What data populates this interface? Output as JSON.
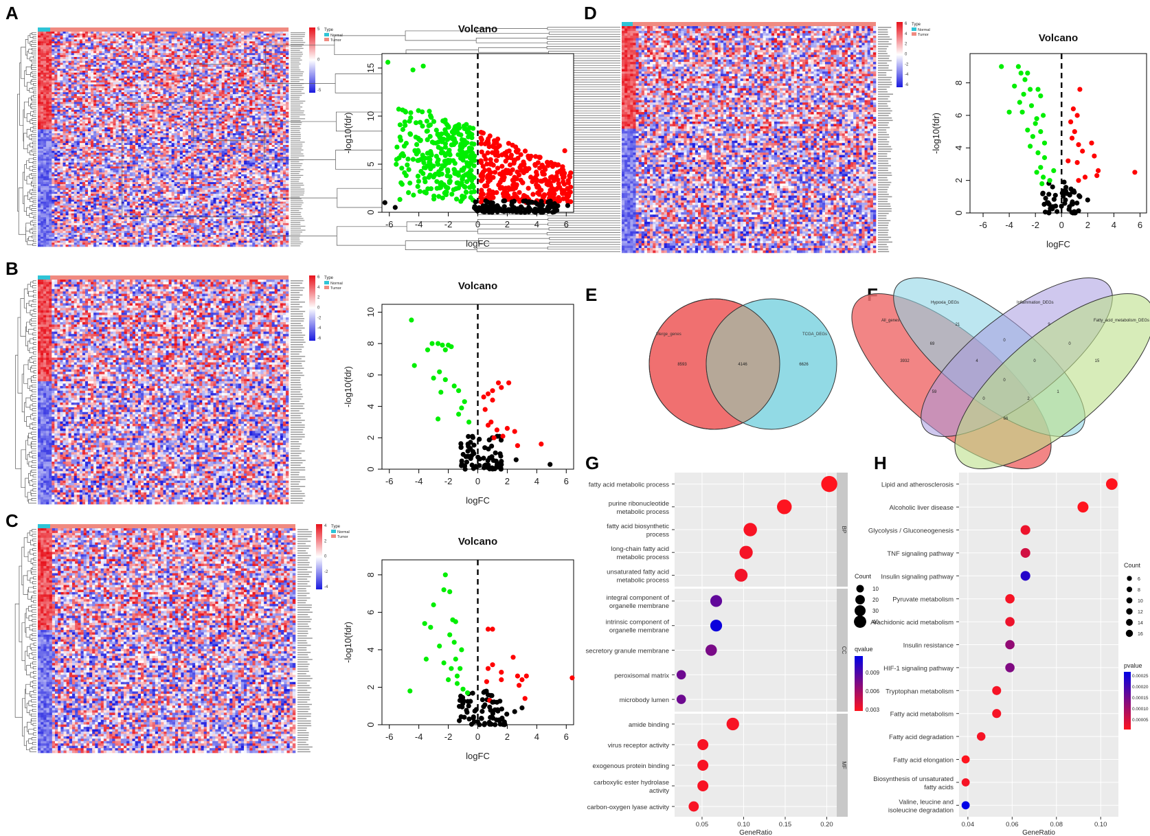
{
  "panel_labels": [
    "A",
    "B",
    "C",
    "D",
    "E",
    "F",
    "G",
    "H"
  ],
  "heatmap_legend": {
    "title": "Type",
    "normal": "Normal",
    "tumor": "Tumor",
    "normal_color": "#2ec4d6",
    "tumor_color": "#f08a80"
  },
  "colors": {
    "up": "#ff0000",
    "down": "#00ee00",
    "ns": "#000000",
    "heat_high": "#e8101a",
    "heat_low": "#1a1adf"
  },
  "heatmaps": [
    {
      "panel": "A",
      "scale_ticks": [
        "5",
        "0",
        "-5"
      ]
    },
    {
      "panel": "B",
      "scale_ticks": [
        "6",
        "4",
        "2",
        "0",
        "-2",
        "-4",
        "-6"
      ]
    },
    {
      "panel": "C",
      "scale_ticks": [
        "4",
        "2",
        "0",
        "-2",
        "-4"
      ]
    },
    {
      "panel": "D",
      "scale_ticks": [
        "6",
        "4",
        "2",
        "0",
        "-2",
        "-4",
        "-6"
      ]
    }
  ],
  "chart_data": [
    {
      "panel": "A",
      "type": "scatter",
      "title": "Volcano",
      "xlabel": "logFC",
      "ylabel": "-log10(fdr)",
      "xlim": [
        -6.5,
        6.5
      ],
      "ylim": [
        0,
        16.5
      ],
      "xticks": [
        -6,
        -4,
        -2,
        0,
        2,
        4,
        6
      ],
      "yticks": [
        0,
        5,
        10,
        15
      ],
      "points": [
        [
          -6.1,
          15.6
        ],
        [
          -4.4,
          14.8
        ],
        [
          -3.7,
          15.2
        ],
        [
          -5.6,
          0.5
        ],
        [
          -6.3,
          1
        ],
        [
          5.9,
          6.4
        ],
        [
          6.3,
          4.1
        ],
        [
          4.3,
          2.3
        ],
        [
          6.1,
          0.7
        ],
        [
          4.8,
          1.1
        ]
      ],
      "clouds": [
        {
          "class": "down",
          "x": [
            -5.6,
            -0.2
          ],
          "y": [
            1.0,
            13.0
          ],
          "n": 320
        },
        {
          "class": "up",
          "x": [
            0.2,
            6.3
          ],
          "y": [
            1.0,
            8.5
          ],
          "n": 320
        },
        {
          "class": "ns",
          "x": [
            -0.3,
            5.5
          ],
          "y": [
            0,
            1.2
          ],
          "n": 120
        }
      ]
    },
    {
      "panel": "B",
      "type": "scatter",
      "title": "Volcano",
      "xlabel": "logFC",
      "ylabel": "-log10(fdr)",
      "xlim": [
        -6.5,
        6.5
      ],
      "ylim": [
        0,
        10.5
      ],
      "xticks": [
        -6,
        -4,
        -2,
        0,
        2,
        4,
        6
      ],
      "yticks": [
        0,
        2,
        4,
        6,
        8,
        10
      ],
      "points": [
        [
          -4.5,
          9.5
        ],
        [
          -4.3,
          6.6
        ],
        [
          -3.4,
          7.6
        ],
        [
          -3.1,
          8.0
        ],
        [
          -2.7,
          8.0
        ],
        [
          -2.4,
          7.9
        ],
        [
          -2.2,
          7.6
        ],
        [
          -2.0,
          7.9
        ],
        [
          -1.8,
          7.8
        ],
        [
          -3.0,
          5.8
        ],
        [
          -2.6,
          6.2
        ],
        [
          -2.2,
          5.7
        ],
        [
          -2.5,
          4.9
        ],
        [
          -1.6,
          5.3
        ],
        [
          -1.3,
          5.0
        ],
        [
          -2.7,
          3.2
        ],
        [
          -1.1,
          3.9
        ],
        [
          -0.9,
          4.3
        ],
        [
          -0.6,
          3.0
        ],
        [
          -1.3,
          3.5
        ],
        [
          0.4,
          4.6
        ],
        [
          0.7,
          4.8
        ],
        [
          1.0,
          5.0
        ],
        [
          1.4,
          5.5
        ],
        [
          1.6,
          5.2
        ],
        [
          2.1,
          5.5
        ],
        [
          1.0,
          4.4
        ],
        [
          0.5,
          3.8
        ],
        [
          0.9,
          3.0
        ],
        [
          1.3,
          2.5
        ],
        [
          1.7,
          2.1
        ],
        [
          2.0,
          2.6
        ],
        [
          2.5,
          2.4
        ],
        [
          0.7,
          2.8
        ],
        [
          1.1,
          2.0
        ],
        [
          2.7,
          1.5
        ],
        [
          4.3,
          1.6
        ],
        [
          4.9,
          0.3
        ],
        [
          2.6,
          0.6
        ],
        [
          1.6,
          0.5
        ],
        [
          -0.8,
          0.8
        ]
      ],
      "clouds": [
        {
          "class": "ns",
          "x": [
            -1.2,
            1.6
          ],
          "y": [
            0,
            2.2
          ],
          "n": 70
        }
      ]
    },
    {
      "panel": "C",
      "type": "scatter",
      "title": "Volcano",
      "xlabel": "logFC",
      "ylabel": "-log10(fdr)",
      "xlim": [
        -6.5,
        6.5
      ],
      "ylim": [
        0,
        8.8
      ],
      "xticks": [
        -6,
        -4,
        -2,
        0,
        2,
        4,
        6
      ],
      "yticks": [
        0,
        2,
        4,
        6,
        8
      ],
      "points": [
        [
          -2.2,
          8.0
        ],
        [
          -2.3,
          7.2
        ],
        [
          -1.9,
          7.1
        ],
        [
          -1.7,
          5.6
        ],
        [
          -1.5,
          5.5
        ],
        [
          -3.0,
          6.4
        ],
        [
          -3.6,
          5.4
        ],
        [
          -3.2,
          5.2
        ],
        [
          -1.9,
          4.8
        ],
        [
          -1.6,
          4.4
        ],
        [
          -1.1,
          4.0
        ],
        [
          -2.6,
          4.2
        ],
        [
          -3.5,
          3.5
        ],
        [
          -2.3,
          3.3
        ],
        [
          -1.5,
          3.5
        ],
        [
          -1.2,
          3.0
        ],
        [
          -1.8,
          3.0
        ],
        [
          -2.0,
          2.4
        ],
        [
          -1.4,
          2.2
        ],
        [
          -1.0,
          1.9
        ],
        [
          -4.6,
          1.8
        ],
        [
          -0.7,
          1.7
        ],
        [
          -1.4,
          2.6
        ],
        [
          0.7,
          5.1
        ],
        [
          1.0,
          5.1
        ],
        [
          2.4,
          3.6
        ],
        [
          1.6,
          2.8
        ],
        [
          0.7,
          3.0
        ],
        [
          1.0,
          3.2
        ],
        [
          3.3,
          2.6
        ],
        [
          2.7,
          2.6
        ],
        [
          3.0,
          2.4
        ],
        [
          2.8,
          2.1
        ],
        [
          1.6,
          2.4
        ],
        [
          0.6,
          2.3
        ],
        [
          0.8,
          1.3
        ],
        [
          1.0,
          1.2
        ],
        [
          6.4,
          2.5
        ],
        [
          1.3,
          1.2
        ],
        [
          3.2,
          1.4
        ],
        [
          2.5,
          0.7
        ],
        [
          3.0,
          0.9
        ]
      ],
      "clouds": [
        {
          "class": "ns",
          "x": [
            -1.3,
            2.0
          ],
          "y": [
            0,
            1.8
          ],
          "n": 70
        }
      ]
    },
    {
      "panel": "D",
      "type": "scatter",
      "title": "Volcano",
      "xlabel": "logFC",
      "ylabel": "-log10(fdr)",
      "xlim": [
        -7,
        6.5
      ],
      "ylim": [
        0,
        9.8
      ],
      "xticks": [
        -6,
        -4,
        -2,
        0,
        2,
        4,
        6
      ],
      "yticks": [
        0,
        2,
        4,
        6,
        8
      ],
      "points": [
        [
          -4.6,
          9.0
        ],
        [
          -3.3,
          9.0
        ],
        [
          -3.1,
          8.6
        ],
        [
          -2.8,
          8.2
        ],
        [
          -2.6,
          8.6
        ],
        [
          -3.6,
          7.8
        ],
        [
          -2.4,
          7.6
        ],
        [
          -1.8,
          7.6
        ],
        [
          -2.9,
          7.3
        ],
        [
          -1.6,
          7.2
        ],
        [
          -3.2,
          6.8
        ],
        [
          -2.3,
          6.6
        ],
        [
          -4.0,
          6.2
        ],
        [
          -1.9,
          5.8
        ],
        [
          -3.0,
          6.2
        ],
        [
          -2.0,
          5.5
        ],
        [
          -1.4,
          6.0
        ],
        [
          -2.6,
          5.1
        ],
        [
          -1.6,
          5.0
        ],
        [
          -2.2,
          4.7
        ],
        [
          -1.3,
          4.3
        ],
        [
          -2.4,
          4.1
        ],
        [
          -1.8,
          3.7
        ],
        [
          -1.3,
          3.4
        ],
        [
          -1.6,
          2.8
        ],
        [
          -1.9,
          2.5
        ],
        [
          -1.4,
          2.2
        ],
        [
          -0.9,
          2.0
        ],
        [
          -0.6,
          2.6
        ],
        [
          -1.5,
          1.8
        ],
        [
          1.4,
          7.6
        ],
        [
          0.9,
          6.4
        ],
        [
          1.2,
          6.0
        ],
        [
          0.7,
          5.6
        ],
        [
          1.0,
          5.0
        ],
        [
          0.8,
          4.6
        ],
        [
          1.3,
          4.2
        ],
        [
          2.3,
          4.3
        ],
        [
          1.6,
          3.8
        ],
        [
          2.5,
          3.5
        ],
        [
          1.2,
          3.1
        ],
        [
          0.5,
          3.2
        ],
        [
          2.8,
          2.6
        ],
        [
          1.8,
          2.2
        ],
        [
          1.3,
          2.0
        ],
        [
          2.7,
          2.3
        ],
        [
          5.6,
          2.5
        ],
        [
          1.4,
          1.0
        ],
        [
          2.0,
          0.8
        ],
        [
          0.4,
          1.2
        ]
      ],
      "clouds": [
        {
          "class": "ns",
          "x": [
            -1.5,
            1.4
          ],
          "y": [
            0,
            2.0
          ],
          "n": 50
        }
      ]
    },
    {
      "panel": "G",
      "type": "dot",
      "xlabel": "GeneRatio",
      "xlim": [
        0.017,
        0.212
      ],
      "xticks": [
        0.05,
        0.1,
        0.15,
        0.2
      ],
      "xtick_labels": [
        "0.05",
        "0.10",
        "0.15",
        "0.20"
      ],
      "facets": [
        "BP",
        "CC",
        "MF"
      ],
      "terms": [
        {
          "facet": "BP",
          "lines": [
            "fatty acid metabolic process"
          ],
          "x": 0.203,
          "count": 45,
          "q": 0.0005
        },
        {
          "facet": "BP",
          "lines": [
            "purine ribonucleotide",
            "metabolic process"
          ],
          "x": 0.149,
          "count": 34,
          "q": 0.0006
        },
        {
          "facet": "BP",
          "lines": [
            "fatty acid biosynthetic",
            "process"
          ],
          "x": 0.108,
          "count": 25,
          "q": 0.0008
        },
        {
          "facet": "BP",
          "lines": [
            "long-chain fatty acid",
            "metabolic process"
          ],
          "x": 0.103,
          "count": 24,
          "q": 0.0009
        },
        {
          "facet": "BP",
          "lines": [
            "unsaturated fatty acid",
            "metabolic process"
          ],
          "x": 0.097,
          "count": 22,
          "q": 0.001
        },
        {
          "facet": "CC",
          "lines": [
            "integral component of",
            "organelle membrane"
          ],
          "x": 0.067,
          "count": 16,
          "q": 0.007
        },
        {
          "facet": "CC",
          "lines": [
            "intrinsic component of",
            "organelle membrane"
          ],
          "x": 0.067,
          "count": 16,
          "q": 0.0105
        },
        {
          "facet": "CC",
          "lines": [
            "secretory granule membrane"
          ],
          "x": 0.061,
          "count": 14,
          "q": 0.006
        },
        {
          "facet": "CC",
          "lines": [
            "peroxisomal matrix"
          ],
          "x": 0.025,
          "count": 6,
          "q": 0.0065
        },
        {
          "facet": "CC",
          "lines": [
            "microbody lumen"
          ],
          "x": 0.025,
          "count": 6,
          "q": 0.0065
        },
        {
          "facet": "MF",
          "lines": [
            "amide binding"
          ],
          "x": 0.087,
          "count": 20,
          "q": 0.0008
        },
        {
          "facet": "MF",
          "lines": [
            "virus receptor activity"
          ],
          "x": 0.051,
          "count": 12,
          "q": 0.0008
        },
        {
          "facet": "MF",
          "lines": [
            "exogenous protein binding"
          ],
          "x": 0.051,
          "count": 12,
          "q": 0.0008
        },
        {
          "facet": "MF",
          "lines": [
            "carboxylic ester hydrolase",
            "activity"
          ],
          "x": 0.051,
          "count": 12,
          "q": 0.0008
        },
        {
          "facet": "MF",
          "lines": [
            "carbon-oxygen lyase activity"
          ],
          "x": 0.04,
          "count": 9,
          "q": 0.0008
        }
      ],
      "size_legend": {
        "title": "Count",
        "values": [
          10,
          20,
          30,
          40
        ]
      },
      "color_legend": {
        "title": "qvalue",
        "ticks": [
          "0.009",
          "0.006",
          "0.003"
        ]
      }
    },
    {
      "panel": "H",
      "type": "dot",
      "xlabel": "GeneRatio",
      "xlim": [
        0.036,
        0.108
      ],
      "xticks": [
        0.04,
        0.06,
        0.08,
        0.1
      ],
      "xtick_labels": [
        "0.04",
        "0.06",
        "0.08",
        "0.10"
      ],
      "terms": [
        {
          "lines": [
            "Lipid and atherosclerosis"
          ],
          "x": 0.105,
          "count": 16,
          "p": 1e-05
        },
        {
          "lines": [
            "Alcoholic liver disease"
          ],
          "x": 0.092,
          "count": 14,
          "p": 1e-05
        },
        {
          "lines": [
            "Glycolysis / Gluconeogenesis"
          ],
          "x": 0.066,
          "count": 10,
          "p": 3e-05
        },
        {
          "lines": [
            "TNF signaling pathway"
          ],
          "x": 0.066,
          "count": 10,
          "p": 6e-05
        },
        {
          "lines": [
            "Insulin signaling pathway"
          ],
          "x": 0.066,
          "count": 10,
          "p": 0.00025
        },
        {
          "lines": [
            "Pyruvate metabolism"
          ],
          "x": 0.059,
          "count": 9,
          "p": 2e-05
        },
        {
          "lines": [
            "Arachidonic acid metabolism"
          ],
          "x": 0.059,
          "count": 9,
          "p": 3e-05
        },
        {
          "lines": [
            "Insulin resistance"
          ],
          "x": 0.059,
          "count": 9,
          "p": 0.00013
        },
        {
          "lines": [
            "HIF-1 signaling pathway"
          ],
          "x": 0.059,
          "count": 9,
          "p": 0.00015
        },
        {
          "lines": [
            "Tryptophan metabolism"
          ],
          "x": 0.053,
          "count": 8,
          "p": 2e-05
        },
        {
          "lines": [
            "Fatty acid metabolism"
          ],
          "x": 0.053,
          "count": 8,
          "p": 2e-05
        },
        {
          "lines": [
            "Fatty acid degradation"
          ],
          "x": 0.046,
          "count": 7,
          "p": 2e-05
        },
        {
          "lines": [
            "Fatty acid elongation"
          ],
          "x": 0.039,
          "count": 6,
          "p": 1e-05
        },
        {
          "lines": [
            "Biosynthesis of unsaturated",
            "fatty acids"
          ],
          "x": 0.039,
          "count": 6,
          "p": 2e-05
        },
        {
          "lines": [
            "Valine, leucine and",
            "isoleucine degradation"
          ],
          "x": 0.039,
          "count": 6,
          "p": 0.00029
        }
      ],
      "size_legend": {
        "title": "Count",
        "values": [
          6,
          8,
          10,
          12,
          14,
          16
        ]
      },
      "color_legend": {
        "title": "pvalue",
        "ticks": [
          "0.00025",
          "0.00020",
          "0.00015",
          "0.00010",
          "0.00005"
        ]
      }
    },
    {
      "panel": "E",
      "type": "venn",
      "sets": [
        {
          "name": "Merge_genes",
          "only": "8593"
        },
        {
          "name": "TCGA_DEGs",
          "only": "6626"
        }
      ],
      "intersection": "4146"
    },
    {
      "panel": "F",
      "type": "venn",
      "sets": [
        "All_genes",
        "Hypoxia_DEGs",
        "Inflammation_DEGs",
        "Fatty_acid_metabolism_DEGs"
      ],
      "regions": [
        "3932",
        "21",
        "9",
        "15",
        "69",
        "0",
        "0",
        "4",
        "0",
        "0",
        "59",
        "0",
        "2",
        "1",
        "66"
      ]
    }
  ]
}
